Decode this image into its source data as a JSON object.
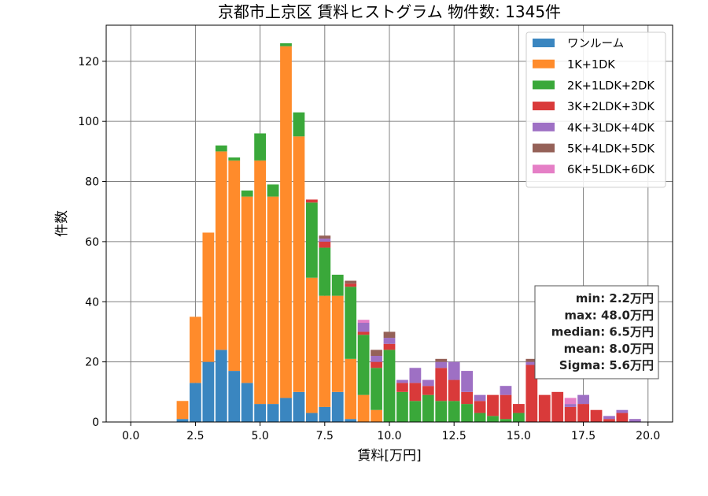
{
  "chart_data": {
    "type": "bar",
    "stacked": true,
    "title": "京都市上京区 賃料ヒストグラム 物件数: 1345件",
    "xlabel": "賃料[万円]",
    "ylabel": "件数",
    "xlim": [
      -0.95,
      20.95
    ],
    "ylim": [
      0,
      132
    ],
    "xticks": [
      0,
      2.5,
      5,
      7.5,
      10,
      12.5,
      15,
      17.5,
      20
    ],
    "xtick_labels": [
      "0.0",
      "2.5",
      "5.0",
      "7.5",
      "10.0",
      "12.5",
      "15.0",
      "17.5",
      "20.0"
    ],
    "yticks": [
      0,
      20,
      40,
      60,
      80,
      100,
      120
    ],
    "ytick_labels": [
      "0",
      "20",
      "40",
      "60",
      "80",
      "100",
      "120"
    ],
    "grid": true,
    "legend_position": "top-right",
    "bin_width": 0.5,
    "bins": [
      0.0,
      0.5,
      1.0,
      1.5,
      2.0,
      2.5,
      3.0,
      3.5,
      4.0,
      4.5,
      5.0,
      5.5,
      6.0,
      6.5,
      7.0,
      7.5,
      8.0,
      8.5,
      9.0,
      9.5,
      10.0,
      10.5,
      11.0,
      11.5,
      12.0,
      12.5,
      13.0,
      13.5,
      14.0,
      14.5,
      15.0,
      15.5,
      16.0,
      16.5,
      17.0,
      17.5,
      18.0,
      18.5,
      19.0,
      19.5,
      20.0
    ],
    "series": [
      {
        "name": "ワンルーム",
        "color": "#3a86c0",
        "values": [
          0,
          0,
          0,
          0,
          1,
          13,
          20,
          24,
          17,
          13,
          6,
          6,
          8,
          10,
          3,
          5,
          10,
          1,
          0,
          0,
          0,
          0,
          0,
          0,
          0,
          0,
          0,
          0,
          0,
          0,
          0,
          0,
          0,
          0,
          0,
          0,
          0,
          0,
          0,
          0,
          0
        ]
      },
      {
        "name": "1K+1DK",
        "color": "#ff8b2b",
        "values": [
          0,
          0,
          0,
          0,
          6,
          22,
          43,
          66,
          70,
          62,
          81,
          69,
          117,
          85,
          45,
          37,
          32,
          20,
          9,
          4,
          0,
          0,
          0,
          0,
          0,
          0,
          0,
          0,
          0,
          0,
          0,
          0,
          0,
          0,
          0,
          0,
          0,
          0,
          0,
          0,
          0
        ]
      },
      {
        "name": "2K+1LDK+2DK",
        "color": "#3aa83a",
        "values": [
          0,
          0,
          0,
          0,
          0,
          0,
          0,
          2,
          1,
          2,
          9,
          4,
          1,
          8,
          25,
          16,
          7,
          24,
          20,
          14,
          24,
          10,
          7,
          9,
          7,
          7,
          6,
          3,
          2,
          1,
          3,
          0,
          0,
          0,
          0,
          0,
          0,
          0,
          0,
          0,
          0
        ]
      },
      {
        "name": "3K+2LDK+3DK",
        "color": "#d93a3a",
        "values": [
          0,
          0,
          0,
          0,
          0,
          0,
          0,
          0,
          0,
          0,
          0,
          0,
          0,
          0,
          1,
          2,
          0,
          1,
          1,
          2,
          2,
          3,
          6,
          3,
          11,
          7,
          4,
          4,
          7,
          8,
          3,
          19,
          9,
          10,
          5,
          6,
          4,
          1,
          3,
          0,
          0
        ]
      },
      {
        "name": "4K+3LDK+4DK",
        "color": "#9e70c4",
        "values": [
          0,
          0,
          0,
          0,
          0,
          0,
          0,
          0,
          0,
          0,
          0,
          0,
          0,
          0,
          0,
          1,
          0,
          0,
          3,
          2,
          2,
          1,
          5,
          2,
          2,
          6,
          7,
          2,
          0,
          3,
          0,
          1,
          0,
          0,
          1,
          3,
          0,
          1,
          1,
          1,
          0
        ]
      },
      {
        "name": "5K+4LDK+5DK",
        "color": "#956158",
        "values": [
          0,
          0,
          0,
          0,
          0,
          0,
          0,
          0,
          0,
          0,
          0,
          0,
          0,
          0,
          0,
          1,
          0,
          1,
          0,
          2,
          2,
          0,
          0,
          0,
          1,
          0,
          0,
          0,
          0,
          0,
          0,
          1,
          0,
          0,
          0,
          0,
          0,
          0,
          0,
          0,
          0
        ]
      },
      {
        "name": "6K+5LDK+6DK",
        "color": "#e57fc6",
        "values": [
          0,
          0,
          0,
          0,
          0,
          0,
          0,
          0,
          0,
          0,
          0,
          0,
          0,
          0,
          0,
          0,
          0,
          0,
          1,
          0,
          0,
          0,
          0,
          0,
          0,
          0,
          0,
          0,
          0,
          0,
          0,
          0,
          0,
          0,
          2,
          0,
          0,
          0,
          0,
          0,
          0
        ]
      }
    ],
    "annotations": [
      "min: 2.2万円",
      "max: 48.0万円",
      "median: 6.5万円",
      "mean: 8.0万円",
      "Sigma: 5.6万円"
    ]
  }
}
